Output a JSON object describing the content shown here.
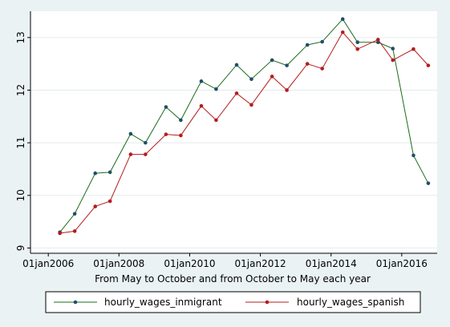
{
  "chart_data": {
    "type": "line",
    "title": "",
    "xlabel": "From May to October and from October to May each year",
    "ylabel": "",
    "x_axis": {
      "type": "date",
      "ticks": [
        "2006-01-01",
        "2008-01-01",
        "2010-01-01",
        "2012-01-01",
        "2014-01-01",
        "2016-01-01"
      ],
      "tick_labels": [
        "01jan2006",
        "01jan2008",
        "01jan2010",
        "01jan2012",
        "01jan2014",
        "01jan2016"
      ],
      "range": [
        "2005-07-01",
        "2017-01-01"
      ]
    },
    "y_axis": {
      "range": [
        8.9,
        13.5
      ],
      "ticks": [
        9,
        10,
        11,
        12,
        13
      ],
      "tick_labels": [
        "9",
        "10",
        "11",
        "12",
        "13"
      ]
    },
    "x": [
      "2006-05-01",
      "2006-10-01",
      "2007-05-01",
      "2007-10-01",
      "2008-05-01",
      "2008-10-01",
      "2009-05-01",
      "2009-10-01",
      "2010-05-01",
      "2010-10-01",
      "2011-05-01",
      "2011-10-01",
      "2012-05-01",
      "2012-10-01",
      "2013-05-01",
      "2013-10-01",
      "2014-05-01",
      "2014-10-01",
      "2015-05-01",
      "2015-10-01",
      "2016-05-01",
      "2016-10-01"
    ],
    "series": [
      {
        "name": "hourly_wages_inmigrant",
        "color": "#1a6b1a",
        "values": [
          9.3,
          9.65,
          10.42,
          10.44,
          11.17,
          11.0,
          11.68,
          11.43,
          12.17,
          12.02,
          12.48,
          12.21,
          12.57,
          12.47,
          12.86,
          12.92,
          13.35,
          12.91,
          12.91,
          12.79,
          10.76,
          10.23
        ]
      },
      {
        "name": "hourly_wages_spanish",
        "color": "#b41c1c",
        "values": [
          9.28,
          9.32,
          9.79,
          9.89,
          10.78,
          10.78,
          11.16,
          11.14,
          11.7,
          11.43,
          11.94,
          11.72,
          12.26,
          12.0,
          12.5,
          12.41,
          13.1,
          12.78,
          12.96,
          12.57,
          12.78,
          12.47
        ]
      }
    ],
    "grid": "horizontal",
    "legend": "bottom"
  }
}
